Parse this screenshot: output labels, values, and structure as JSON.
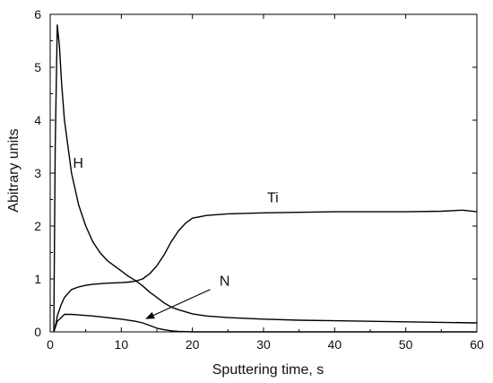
{
  "chart_data": {
    "type": "line",
    "title": "",
    "xlabel": "Sputtering time, s",
    "ylabel": "Abitrary units",
    "xlim": [
      0,
      60
    ],
    "ylim": [
      0,
      6
    ],
    "x_ticks": [
      0,
      10,
      20,
      30,
      40,
      50,
      60
    ],
    "y_ticks": [
      0,
      1,
      2,
      3,
      4,
      5,
      6
    ],
    "grid": false,
    "legend": "none",
    "line_color": "#000000",
    "series": [
      {
        "name": "H",
        "x": [
          0.5,
          0.7,
          1.0,
          1.3,
          1.6,
          2,
          3,
          4,
          5,
          6,
          7,
          8,
          9,
          10,
          11,
          12,
          13,
          14,
          15,
          16,
          17,
          18,
          19,
          20,
          22,
          25,
          30,
          35,
          40,
          45,
          50,
          55,
          60
        ],
        "y": [
          0,
          3.5,
          5.8,
          5.4,
          4.7,
          4.0,
          3.0,
          2.4,
          2.0,
          1.7,
          1.5,
          1.35,
          1.25,
          1.15,
          1.05,
          0.97,
          0.87,
          0.75,
          0.65,
          0.55,
          0.47,
          0.42,
          0.38,
          0.34,
          0.3,
          0.27,
          0.24,
          0.22,
          0.21,
          0.2,
          0.19,
          0.18,
          0.17
        ]
      },
      {
        "name": "Ti",
        "x": [
          0.5,
          0.8,
          1,
          1.5,
          2,
          3,
          4,
          5,
          6,
          8,
          10,
          11,
          12,
          13,
          14,
          15,
          16,
          17,
          18,
          19,
          20,
          22,
          25,
          30,
          35,
          40,
          45,
          50,
          55,
          58,
          60
        ],
        "y": [
          0,
          0.15,
          0.3,
          0.5,
          0.65,
          0.8,
          0.85,
          0.88,
          0.9,
          0.92,
          0.93,
          0.94,
          0.96,
          1.0,
          1.1,
          1.25,
          1.45,
          1.7,
          1.9,
          2.05,
          2.15,
          2.2,
          2.23,
          2.25,
          2.26,
          2.27,
          2.27,
          2.27,
          2.28,
          2.3,
          2.27
        ]
      },
      {
        "name": "N",
        "x": [
          0.5,
          1,
          2,
          3,
          4,
          6,
          8,
          10,
          12,
          13,
          14,
          15,
          16,
          17,
          18,
          20,
          25,
          30,
          40,
          50,
          60
        ],
        "y": [
          0,
          0.2,
          0.33,
          0.33,
          0.32,
          0.3,
          0.27,
          0.24,
          0.2,
          0.17,
          0.12,
          0.07,
          0.04,
          0.02,
          0.01,
          0.0,
          0.0,
          0.0,
          0.0,
          0.0,
          0.0
        ]
      }
    ],
    "annotations": [
      {
        "text": "H",
        "x": 3.2,
        "y": 3.1
      },
      {
        "text": "Ti",
        "x": 30.5,
        "y": 2.45
      },
      {
        "text": "N",
        "x": 23.8,
        "y": 0.87
      }
    ],
    "arrow": {
      "from": [
        22.5,
        0.8
      ],
      "to": [
        13.5,
        0.25
      ]
    }
  }
}
